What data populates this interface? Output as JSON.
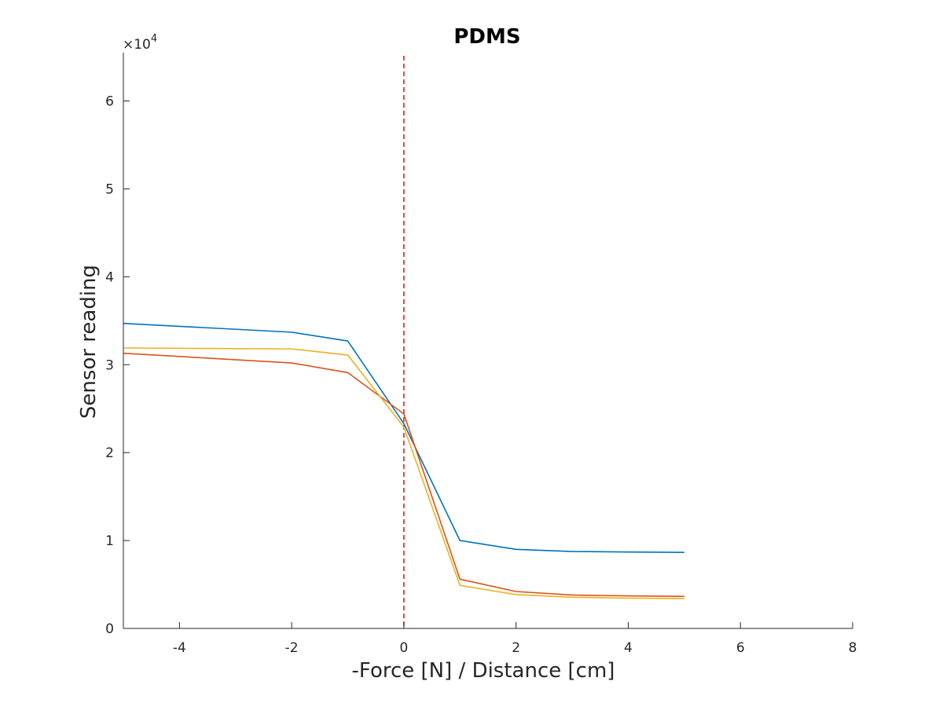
{
  "chart_data": {
    "type": "line",
    "title": "PDMS",
    "xlabel": "-Force [N] / Distance [cm]",
    "ylabel": "Sensor reading",
    "y_exponent_label": "×10",
    "y_exponent_power": "4",
    "xlim": [
      -5,
      8
    ],
    "ylim": [
      0,
      65500
    ],
    "x_ticks": [
      -4,
      -2,
      0,
      2,
      4,
      6,
      8
    ],
    "x_tick_labels": [
      "-4",
      "-2",
      "0",
      "2",
      "4",
      "6",
      "8"
    ],
    "y_ticks": [
      0,
      10000,
      20000,
      30000,
      40000,
      50000,
      60000
    ],
    "y_tick_labels": [
      "0",
      "1",
      "2",
      "3",
      "4",
      "5",
      "6"
    ],
    "grid": false,
    "legend": "none",
    "x": [
      -5,
      -2,
      -1,
      0,
      1,
      2,
      3,
      4,
      5
    ],
    "series": [
      {
        "color": "#0072BD",
        "values": [
          34700,
          33700,
          32700,
          23300,
          10000,
          9000,
          8750,
          8700,
          8650
        ]
      },
      {
        "color": "#D95319",
        "values": [
          31300,
          30200,
          29100,
          24400,
          5600,
          4200,
          3800,
          3700,
          3650
        ]
      },
      {
        "color": "#EDB120",
        "values": [
          31900,
          31800,
          31100,
          22900,
          4900,
          3850,
          3550,
          3450,
          3400
        ]
      }
    ],
    "reference_line": {
      "orientation": "vertical",
      "x": 0,
      "color": "#FF0000",
      "style": "dashed"
    }
  }
}
